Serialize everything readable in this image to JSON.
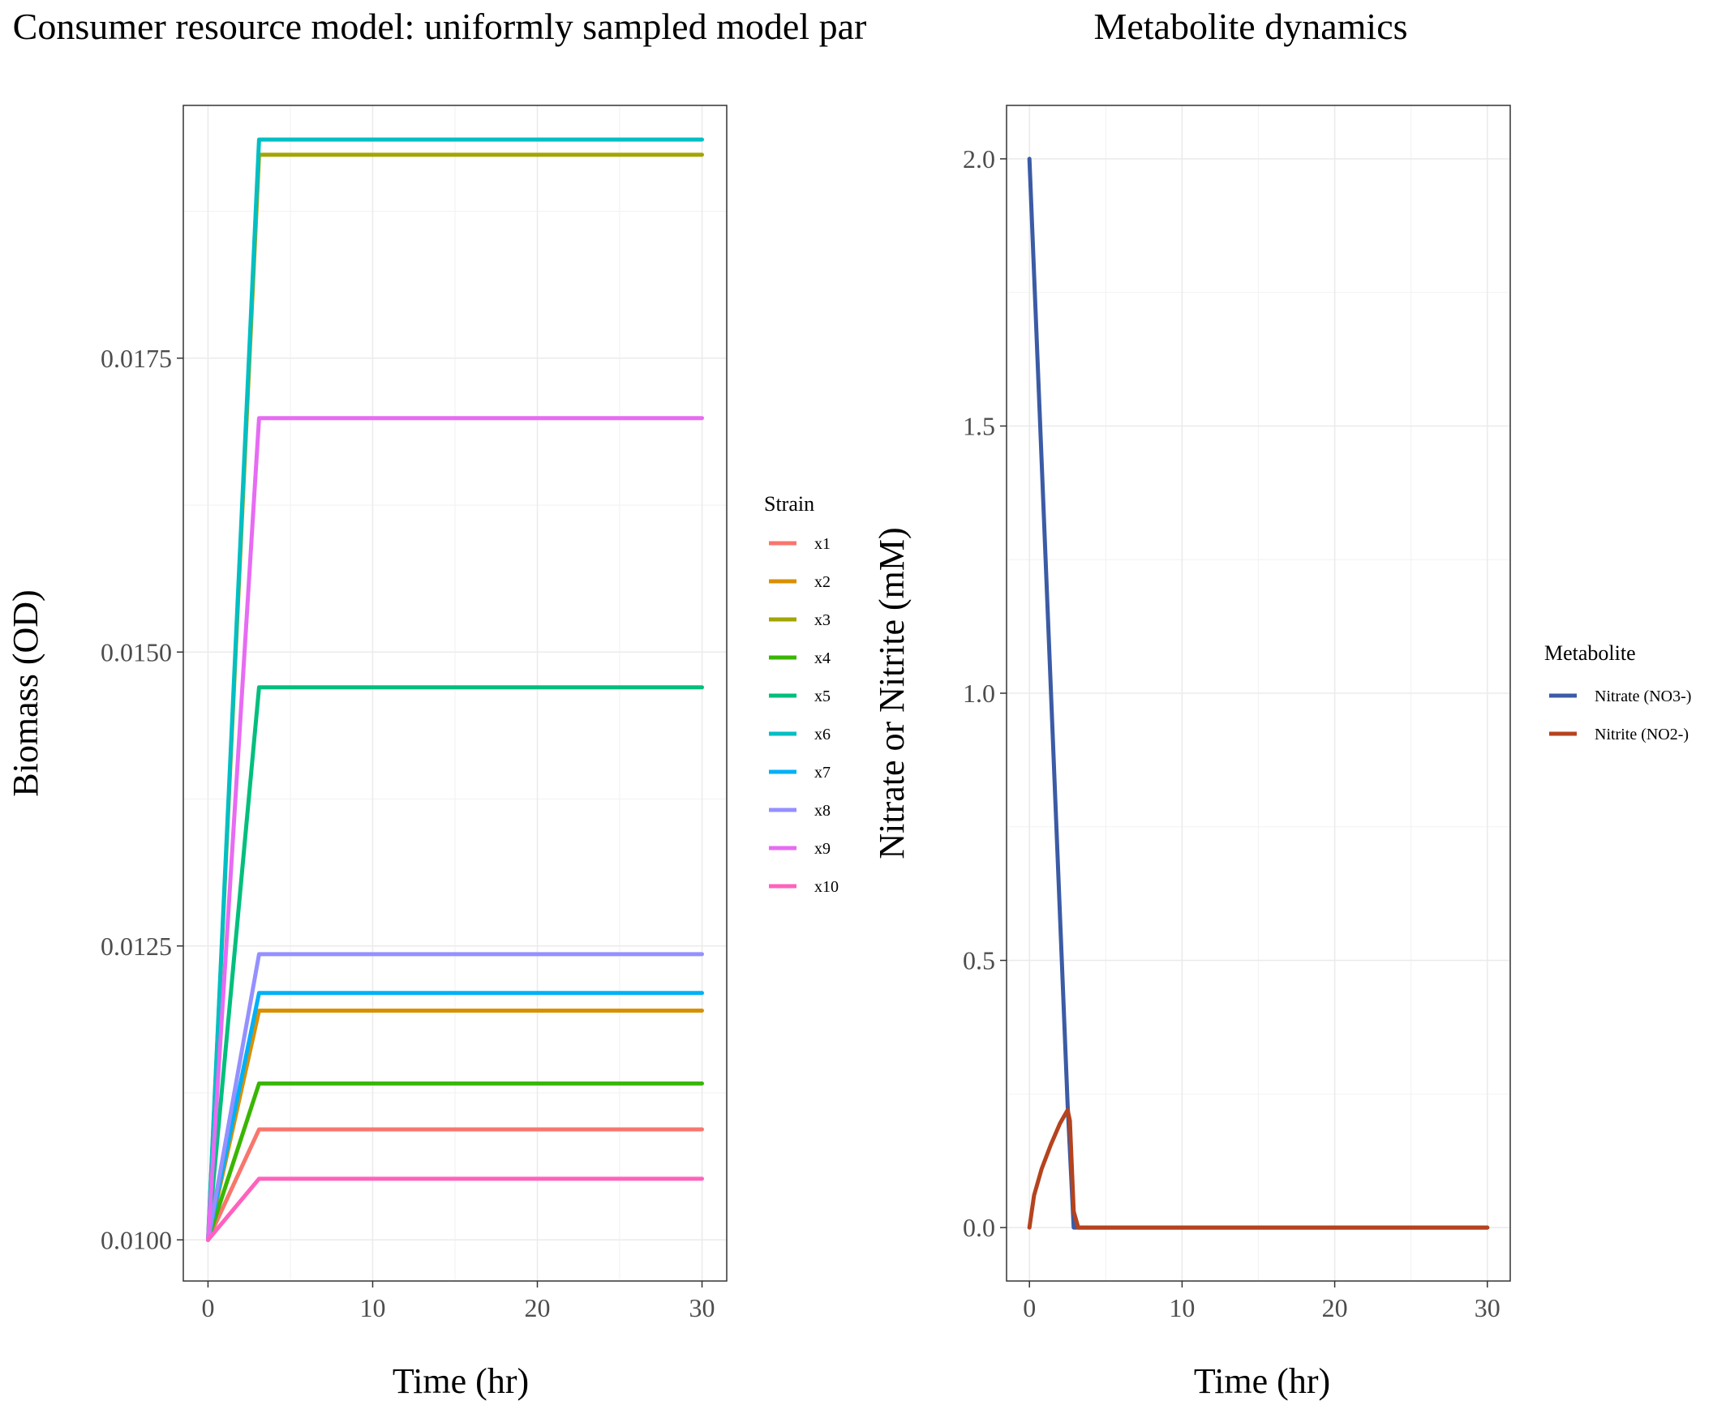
{
  "chart_data": [
    {
      "type": "line",
      "title": "Consumer resource model: uniformly sampled model par",
      "xlabel": "Time (hr)",
      "ylabel": "Biomass (OD)",
      "xlim": [
        -1.5,
        31.5
      ],
      "ylim": [
        0.00965,
        0.01965
      ],
      "xticks": [
        0,
        10,
        20,
        30
      ],
      "xtick_labels": [
        "0",
        "10",
        "20",
        "30"
      ],
      "yticks": [
        0.01,
        0.0125,
        0.015,
        0.0175
      ],
      "ytick_labels": [
        "0.0100",
        "0.0125",
        "0.0150",
        "0.0175"
      ],
      "grid": true,
      "legend_title": "Strain",
      "legend_position": "right",
      "series": [
        {
          "name": "x1",
          "color": "#F8766D",
          "x": [
            0,
            3.1,
            30
          ],
          "values": [
            0.01,
            0.01094,
            0.01094
          ]
        },
        {
          "name": "x2",
          "color": "#D89000",
          "x": [
            0,
            3.1,
            30
          ],
          "values": [
            0.01,
            0.01195,
            0.01195
          ]
        },
        {
          "name": "x3",
          "color": "#A3A500",
          "x": [
            0,
            3.1,
            30
          ],
          "values": [
            0.01,
            0.01923,
            0.01923
          ]
        },
        {
          "name": "x4",
          "color": "#39B600",
          "x": [
            0,
            3.1,
            30
          ],
          "values": [
            0.01,
            0.01133,
            0.01133
          ]
        },
        {
          "name": "x5",
          "color": "#00BF7D",
          "x": [
            0,
            3.1,
            30
          ],
          "values": [
            0.01,
            0.0147,
            0.0147
          ]
        },
        {
          "name": "x6",
          "color": "#00BFC4",
          "x": [
            0,
            3.1,
            30
          ],
          "values": [
            0.01,
            0.01936,
            0.01936
          ]
        },
        {
          "name": "x7",
          "color": "#00B0F6",
          "x": [
            0,
            3.1,
            30
          ],
          "values": [
            0.01,
            0.0121,
            0.0121
          ]
        },
        {
          "name": "x8",
          "color": "#9590FF",
          "x": [
            0,
            3.1,
            30
          ],
          "values": [
            0.01,
            0.01243,
            0.01243
          ]
        },
        {
          "name": "x9",
          "color": "#E76BF3",
          "x": [
            0,
            3.1,
            30
          ],
          "values": [
            0.01,
            0.01699,
            0.01699
          ]
        },
        {
          "name": "x10",
          "color": "#FF62BC",
          "x": [
            0,
            3.1,
            30
          ],
          "values": [
            0.01,
            0.01052,
            0.01052
          ]
        }
      ]
    },
    {
      "type": "line",
      "title": "Metabolite dynamics",
      "xlabel": "Time (hr)",
      "ylabel": "Nitrate or Nitrite (mM)",
      "xlim": [
        -1.5,
        31.5
      ],
      "ylim": [
        -0.1,
        2.1
      ],
      "xticks": [
        0,
        10,
        20,
        30
      ],
      "xtick_labels": [
        "0",
        "10",
        "20",
        "30"
      ],
      "yticks": [
        0,
        0.5,
        1.0,
        1.5,
        2.0
      ],
      "ytick_labels": [
        "0.0",
        "0.5",
        "1.0",
        "1.5",
        "2.0"
      ],
      "grid": true,
      "legend_title": "Metabolite",
      "legend_position": "right",
      "series": [
        {
          "name": "Nitrate (NO3-)",
          "color": "#3B5BA5",
          "x": [
            0,
            2.5,
            2.9,
            30
          ],
          "values": [
            2.0,
            0.23,
            0.0,
            0.0
          ]
        },
        {
          "name": "Nitrite (NO2-)",
          "color": "#B5431E",
          "x": [
            0,
            0.3,
            0.8,
            1.4,
            2.0,
            2.5,
            2.65,
            2.9,
            3.2,
            30
          ],
          "values": [
            0.0,
            0.06,
            0.11,
            0.155,
            0.195,
            0.22,
            0.2,
            0.03,
            0.0,
            0.0
          ]
        }
      ]
    }
  ]
}
